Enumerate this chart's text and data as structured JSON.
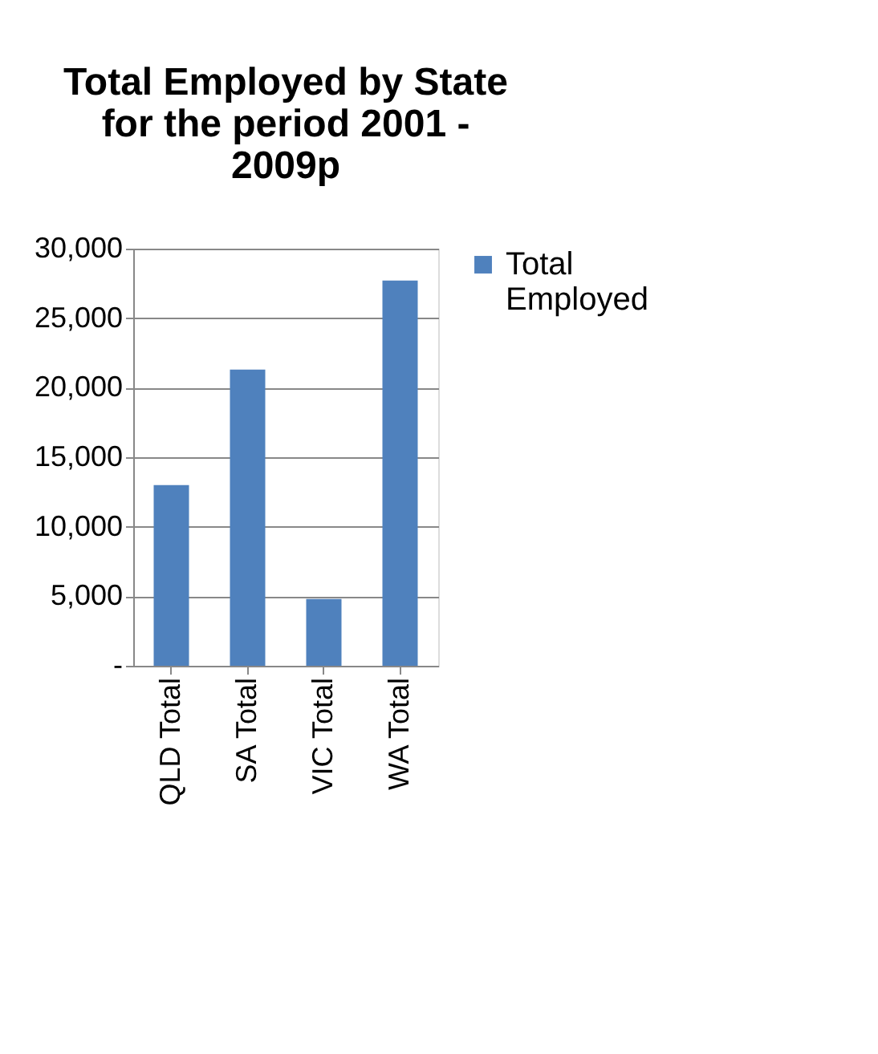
{
  "chart_data": {
    "type": "bar",
    "title": "Total Employed by State for the period 2001 - 2009p",
    "categories": [
      "QLD Total",
      "SA Total",
      "VIC Total",
      "WA Total"
    ],
    "series": [
      {
        "name": "Total Employed",
        "color": "#4f81bd",
        "values": [
          13000,
          21300,
          4800,
          27700
        ]
      }
    ],
    "ylim": [
      0,
      30000
    ],
    "yticks": [
      {
        "value": 0,
        "label": "-"
      },
      {
        "value": 5000,
        "label": "5,000"
      },
      {
        "value": 10000,
        "label": "10,000"
      },
      {
        "value": 15000,
        "label": "15,000"
      },
      {
        "value": 20000,
        "label": "20,000"
      },
      {
        "value": 25000,
        "label": "25,000"
      },
      {
        "value": 30000,
        "label": "30,000"
      }
    ],
    "grid": "y",
    "legend": "right"
  }
}
